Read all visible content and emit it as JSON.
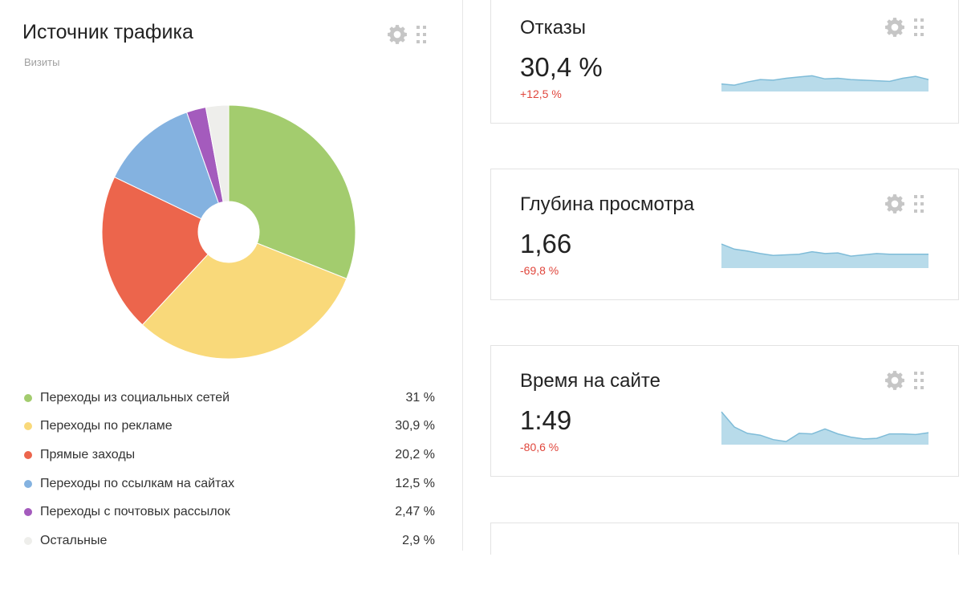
{
  "traffic_widget": {
    "title": "Источник трафика",
    "subtitle": "Визиты",
    "icons": [
      "gear-icon",
      "drag-handle-icon"
    ]
  },
  "chart_data": {
    "type": "pie",
    "donut": true,
    "title": "Источник трафика",
    "subtitle": "Визиты",
    "slices": [
      {
        "label": "Переходы из социальных сетей",
        "value": 31,
        "display": "31 %",
        "color": "#a3cc6e"
      },
      {
        "label": "Переходы по рекламе",
        "value": 30.9,
        "display": "30,9 %",
        "color": "#f9d97a"
      },
      {
        "label": "Прямые заходы",
        "value": 20.2,
        "display": "20,2 %",
        "color": "#ec654c"
      },
      {
        "label": "Переходы по ссылкам на сайтах",
        "value": 12.5,
        "display": "12,5 %",
        "color": "#84b2e0"
      },
      {
        "label": "Переходы с почтовых рассылок",
        "value": 2.47,
        "display": "2,47 %",
        "color": "#a45bbd"
      },
      {
        "label": "Остальные",
        "value": 2.9,
        "display": "2,9 %",
        "color": "#eeeeeb"
      }
    ]
  },
  "metric_cards": [
    {
      "title": "Отказы",
      "value": "30,4 %",
      "change": "+12,5 %",
      "spark": [
        0.6,
        0.5,
        0.75,
        0.95,
        0.9,
        1.05,
        1.15,
        1.25,
        1.0,
        1.05,
        0.95,
        0.9,
        0.85,
        0.8,
        1.05,
        1.2,
        0.95
      ]
    },
    {
      "title": "Глубина просмотра",
      "value": "1,66",
      "change": "-69,8 %",
      "spark": [
        1.9,
        1.5,
        1.35,
        1.15,
        1.0,
        1.05,
        1.1,
        1.3,
        1.15,
        1.2,
        0.95,
        1.05,
        1.15,
        1.1,
        1.1,
        1.1,
        1.1
      ]
    },
    {
      "title": "Время на сайте",
      "value": "1:49",
      "change": "-80,6 %",
      "spark": [
        2.6,
        1.4,
        0.9,
        0.75,
        0.4,
        0.25,
        0.9,
        0.85,
        1.25,
        0.85,
        0.6,
        0.45,
        0.5,
        0.85,
        0.85,
        0.8,
        0.95
      ]
    }
  ],
  "colors": {
    "sparkline_fill": "#b8dbea",
    "sparkline_line": "#7fbcd8",
    "negative_change": "#e0463c",
    "icon": "#c6c6c6"
  }
}
